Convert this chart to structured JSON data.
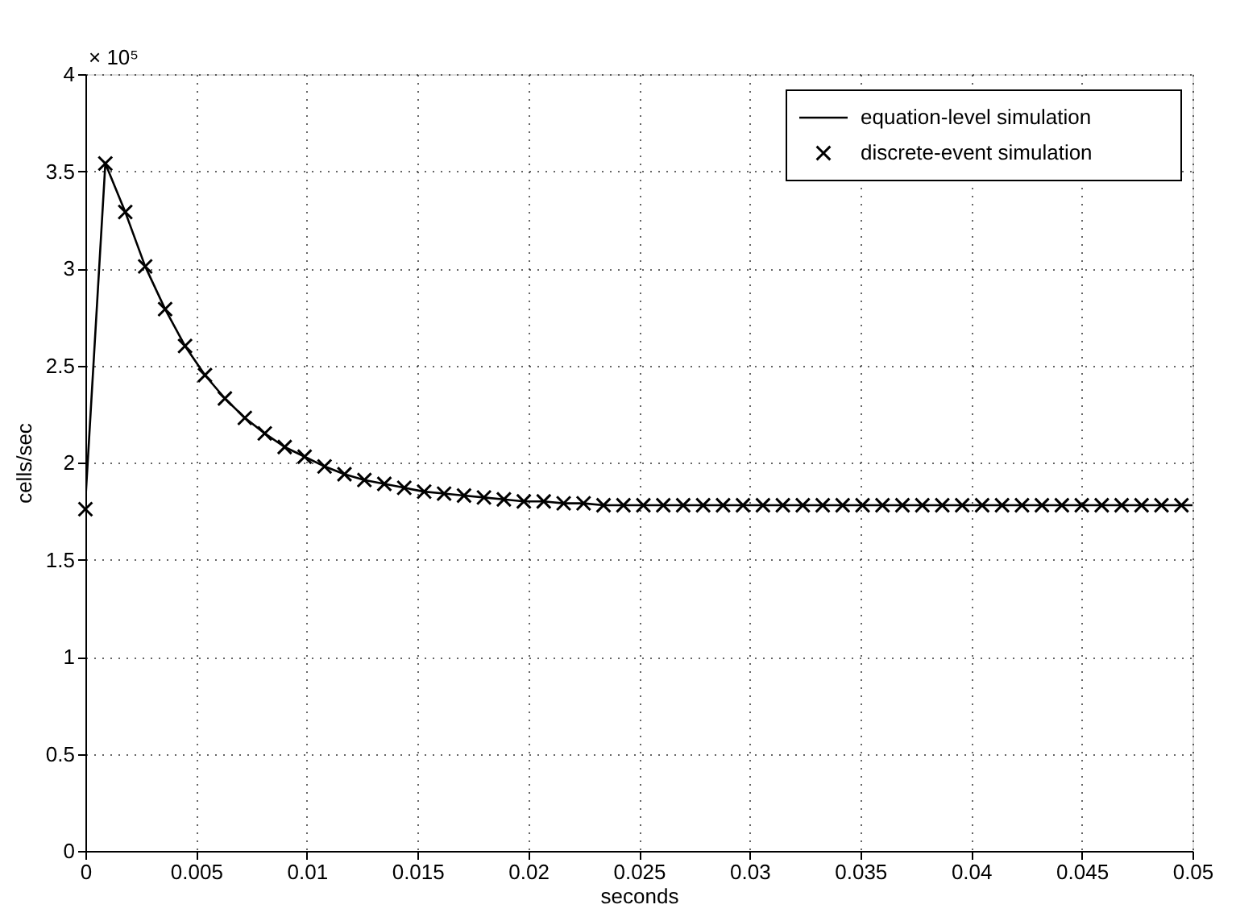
{
  "chart_data": {
    "type": "line",
    "xlabel": "seconds",
    "ylabel": "cells/sec",
    "annotations": [
      "× 10⁵"
    ],
    "xlim": [
      0,
      0.05
    ],
    "ylim": [
      0,
      4
    ],
    "xticks": [
      0,
      0.005,
      0.01,
      0.015,
      0.02,
      0.025,
      0.03,
      0.035,
      0.04,
      0.045,
      0.05
    ],
    "yticks": [
      0,
      0.5,
      1,
      1.5,
      2,
      2.5,
      3,
      3.5,
      4
    ],
    "grid": true,
    "legend": "top right",
    "series": [
      {
        "name": "equation-level simulation",
        "color": "#000000",
        "line_style": "solid",
        "marker": "none",
        "x": [
          0,
          0.0009,
          0.0018,
          0.0027,
          0.0036,
          0.0045,
          0.0054,
          0.0063,
          0.0072,
          0.0081,
          0.009,
          0.0099,
          0.0108,
          0.0117,
          0.0126,
          0.0135,
          0.0144,
          0.0153,
          0.0162,
          0.0171,
          0.018,
          0.0189,
          0.0198,
          0.0207,
          0.0216,
          0.0225,
          0.0234,
          0.0243,
          0.0252,
          0.0261,
          0.027,
          0.0279,
          0.0288,
          0.0297,
          0.0306,
          0.0315,
          0.0324,
          0.0333,
          0.0342,
          0.0351,
          0.036,
          0.0369,
          0.0378,
          0.0387,
          0.0396,
          0.0405,
          0.0414,
          0.0423,
          0.0432,
          0.0441,
          0.045,
          0.0459,
          0.0468,
          0.0477,
          0.0486,
          0.0495,
          0.05
        ],
        "values": [
          1.8,
          3.54,
          3.29,
          3.01,
          2.79,
          2.6,
          2.45,
          2.33,
          2.23,
          2.15,
          2.08,
          2.03,
          1.98,
          1.94,
          1.91,
          1.89,
          1.87,
          1.85,
          1.84,
          1.83,
          1.82,
          1.81,
          1.8,
          1.8,
          1.79,
          1.79,
          1.78,
          1.78,
          1.78,
          1.78,
          1.78,
          1.78,
          1.78,
          1.78,
          1.78,
          1.78,
          1.78,
          1.78,
          1.78,
          1.78,
          1.78,
          1.78,
          1.78,
          1.78,
          1.78,
          1.78,
          1.78,
          1.78,
          1.78,
          1.78,
          1.78,
          1.78,
          1.78,
          1.78,
          1.78,
          1.78,
          1.78
        ]
      },
      {
        "name": "discrete-event simulation",
        "type": "scatter",
        "color": "#000000",
        "marker": "cross",
        "x": [
          0,
          0.0009,
          0.0018,
          0.0027,
          0.0036,
          0.0045,
          0.0054,
          0.0063,
          0.0072,
          0.0081,
          0.009,
          0.0099,
          0.0108,
          0.0117,
          0.0126,
          0.0135,
          0.0144,
          0.0153,
          0.0162,
          0.0171,
          0.018,
          0.0189,
          0.0198,
          0.0207,
          0.0216,
          0.0225,
          0.0234,
          0.0243,
          0.0252,
          0.0261,
          0.027,
          0.0279,
          0.0288,
          0.0297,
          0.0306,
          0.0315,
          0.0324,
          0.0333,
          0.0342,
          0.0351,
          0.036,
          0.0369,
          0.0378,
          0.0387,
          0.0396,
          0.0405,
          0.0414,
          0.0423,
          0.0432,
          0.0441,
          0.045,
          0.0459,
          0.0468,
          0.0477,
          0.0486,
          0.0495
        ],
        "values": [
          1.76,
          3.54,
          3.29,
          3.01,
          2.79,
          2.6,
          2.45,
          2.33,
          2.23,
          2.15,
          2.08,
          2.03,
          1.98,
          1.94,
          1.91,
          1.89,
          1.87,
          1.85,
          1.84,
          1.83,
          1.82,
          1.81,
          1.8,
          1.8,
          1.79,
          1.79,
          1.78,
          1.78,
          1.78,
          1.78,
          1.78,
          1.78,
          1.78,
          1.78,
          1.78,
          1.78,
          1.78,
          1.78,
          1.78,
          1.78,
          1.78,
          1.78,
          1.78,
          1.78,
          1.78,
          1.78,
          1.78,
          1.78,
          1.78,
          1.78,
          1.78,
          1.78,
          1.78,
          1.78,
          1.78,
          1.78
        ]
      }
    ]
  }
}
